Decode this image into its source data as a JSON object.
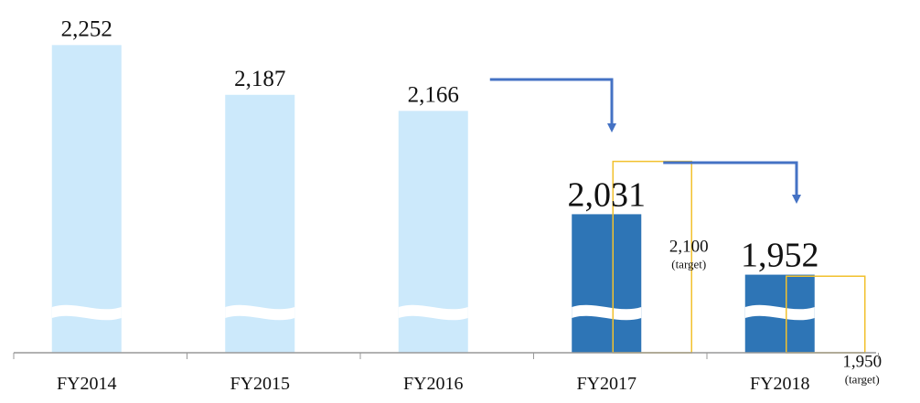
{
  "chart_data": {
    "type": "bar",
    "categories": [
      "FY2014",
      "FY2015",
      "FY2016",
      "FY2017",
      "FY2018"
    ],
    "values": [
      2252,
      2187,
      2166,
      2031,
      1952
    ],
    "value_labels": [
      "2,252",
      "2,187",
      "2,166",
      "2,031",
      "1,952"
    ],
    "targets": [
      {
        "category": "FY2017",
        "value": 2100,
        "value_label": "2,100",
        "note": "(target)"
      },
      {
        "category": "FY2018",
        "value": 1950,
        "value_label": "1,950",
        "note": "(target)"
      }
    ],
    "axis_break": true,
    "grid": false,
    "colors": {
      "past": "#cce9fb",
      "current": "#2e75b6",
      "highlight_text": "#2e75b6",
      "target_outline": "#f2c12e",
      "arrow": "#4472c4",
      "axis": "#999999"
    }
  }
}
